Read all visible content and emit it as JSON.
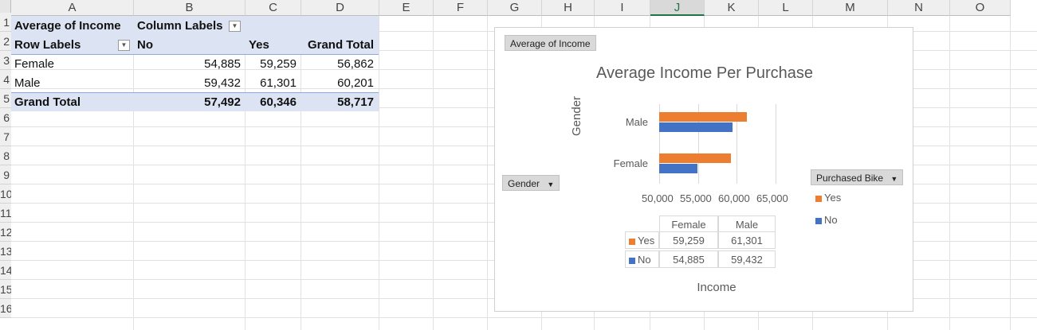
{
  "columns": [
    "A",
    "B",
    "C",
    "D",
    "E",
    "F",
    "G",
    "H",
    "I",
    "J",
    "K",
    "L",
    "M",
    "N",
    "O"
  ],
  "selected_column": "J",
  "rows": [
    "",
    "1",
    "2",
    "3",
    "4",
    "5",
    "6",
    "7",
    "8",
    "9",
    "10",
    "11",
    "12",
    "13",
    "14",
    "15",
    "16"
  ],
  "pivot": {
    "corner_label": "Average of Income",
    "column_labels": "Column Labels",
    "row_labels": "Row Labels",
    "col_headers": [
      "No",
      "Yes",
      "Grand Total"
    ],
    "rows": [
      {
        "label": "Female",
        "no": "54,885",
        "yes": "59,259",
        "total": "56,862"
      },
      {
        "label": "Male",
        "no": "59,432",
        "yes": "61,301",
        "total": "60,201"
      }
    ],
    "grand_total": {
      "label": "Grand Total",
      "no": "57,492",
      "yes": "60,346",
      "total": "58,717"
    }
  },
  "chart": {
    "value_field_button": "Average of Income",
    "axis_field_button": "Gender",
    "legend_field_button": "Purchased Bike",
    "colors": {
      "yes": "#ed7d31",
      "no": "#4472c4"
    }
  },
  "chart_data": {
    "type": "bar",
    "title": "Average Income Per Purchase",
    "xlabel": "Income",
    "ylabel": "Gender",
    "categories": [
      "Female",
      "Male"
    ],
    "series": [
      {
        "name": "Yes",
        "values": [
          59259,
          61301
        ]
      },
      {
        "name": "No",
        "values": [
          54885,
          59432
        ]
      }
    ],
    "xlim": [
      50000,
      65000
    ],
    "x_ticks": [
      "50,000",
      "55,000",
      "60,000",
      "65,000"
    ],
    "legend_position": "right",
    "data_table": {
      "columns": [
        "Female",
        "Male"
      ],
      "rows": [
        {
          "label": "Yes",
          "values": [
            "59,259",
            "61,301"
          ]
        },
        {
          "label": "No",
          "values": [
            "54,885",
            "59,432"
          ]
        }
      ]
    }
  }
}
